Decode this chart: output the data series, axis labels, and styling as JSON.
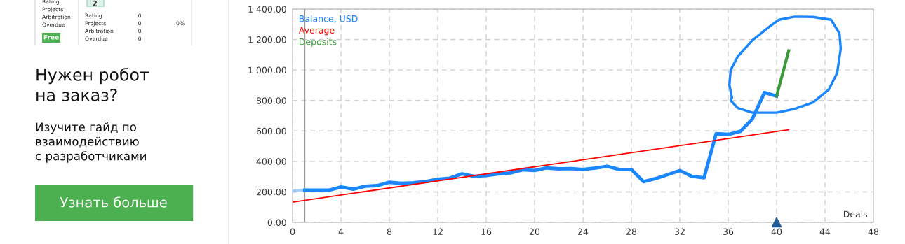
{
  "chart_data": [
    {
      "type": "other",
      "annotations": [
        "Rating",
        "Projects",
        "Arbitration",
        "Overdue",
        "Free",
        "2",
        "Rating",
        "0",
        "Projects",
        "0",
        "0%",
        "Arbitration",
        "0",
        "Overdue",
        "0",
        "Нужен робот\nна заказ?",
        "Изучите гайд по\nвзаимодействию\nс разработчиками",
        "Узнать больше"
      ]
    },
    {
      "type": "line",
      "xlabel": "Deals",
      "xlim": [
        0,
        48
      ],
      "xticks": [
        0,
        4,
        8,
        12,
        16,
        20,
        24,
        28,
        32,
        36,
        40,
        44,
        48
      ],
      "ylim": [
        0,
        1400
      ],
      "yticks": [
        {
          "value": 0,
          "label": "0.00"
        },
        {
          "value": 200,
          "label": "200.00"
        },
        {
          "value": 400,
          "label": "400.00"
        },
        {
          "value": 600,
          "label": "600.00"
        },
        {
          "value": 800,
          "label": "800.00"
        },
        {
          "value": 1000,
          "label": "1 000.00"
        },
        {
          "value": 1200,
          "label": "1 200.00"
        },
        {
          "value": 1400,
          "label": "1 400.00"
        }
      ],
      "grid": true,
      "legend": "top left",
      "ref_lines": [
        {
          "axis": "x",
          "value": 1,
          "color": "#9a9a9a"
        }
      ],
      "series": [
        {
          "color": "#a8cdf2",
          "x": [
            0,
            1
          ],
          "values": [
            206,
            211
          ]
        },
        {
          "name": "Balance, USD",
          "color": "#1a87ff",
          "x": [
            1,
            2,
            3,
            4,
            5,
            6,
            7,
            8,
            9,
            10,
            11,
            12,
            13,
            14,
            15,
            16,
            17,
            18,
            19,
            20,
            21,
            22,
            23,
            24,
            25,
            26,
            27,
            28,
            29,
            30,
            31,
            32,
            33,
            34,
            35,
            36,
            37,
            38,
            39,
            40
          ],
          "values": [
            211,
            211,
            211,
            232,
            218,
            237,
            241,
            263,
            256,
            260,
            268,
            283,
            290,
            319,
            302,
            307,
            317,
            324,
            345,
            340,
            357,
            351,
            353,
            347,
            356,
            368,
            347,
            347,
            267,
            287,
            313,
            340,
            302,
            292,
            582,
            577,
            597,
            679,
            852,
            829
          ]
        },
        {
          "name": "Average",
          "color": "#ff0000",
          "x": [
            0,
            41
          ],
          "values": [
            133,
            608
          ]
        },
        {
          "name": "Deposits",
          "color": "#3a9a3a",
          "x": [
            40,
            41
          ],
          "values": [
            829,
            1127
          ]
        },
        {
          "type": "scatter",
          "marker": "triangle",
          "color": "#1f5c99",
          "x": [
            40
          ],
          "values": [
            0
          ]
        }
      ]
    }
  ]
}
